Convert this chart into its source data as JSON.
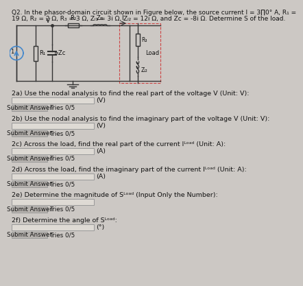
{
  "bg_color": "#ccc8c4",
  "title_line1": "Q2. In the phasor-domain circuit shown in Figure below, the source current I = 3∏0° A, R₁ =",
  "title_line2": "19 Ω, R₂ = 2 Ω, R₃ = 3 Ω, Zₗ₁ = 3i Ω, Zₗ₂ = 12i Ω, and Zᴄ = -8i Ω. Determine S of the load.",
  "q2a": "2a) Use the nodal analysis to find the real part of the voltage V (Unit: V):",
  "q2b": "2b) Use the nodal analysis to find the imaginary part of the voltage V (Unit: V):",
  "q2c": "2c) Across the load, find the real part of the current Iᴸᵒᵃᵈ (Unit: A):",
  "q2d": "2d) Across the load, find the imaginary part of the current Iᴸᵒᵃᵈ (Unit: A):",
  "q2e": "2e) Determine the magnitude of Sᴸᵒᵃᵈ (Input Only the Number):",
  "q2f": "2f) Determine the angle of Sᴸᵒᵃᵈ:",
  "unit_V": "(V)",
  "unit_A": "(A)",
  "unit_deg": "(°)",
  "submit_label": "Submit Answer",
  "tries_label": "Tries 0/5",
  "input_bg": "#dedad4",
  "button_bg": "#b8b4b0",
  "wire_color": "#333333",
  "circuit_bg": "#f0ede8",
  "load_border": "#cc4444",
  "text_color": "#111111",
  "fs_title": 6.5,
  "fs_body": 6.8,
  "fs_circuit": 6.0
}
